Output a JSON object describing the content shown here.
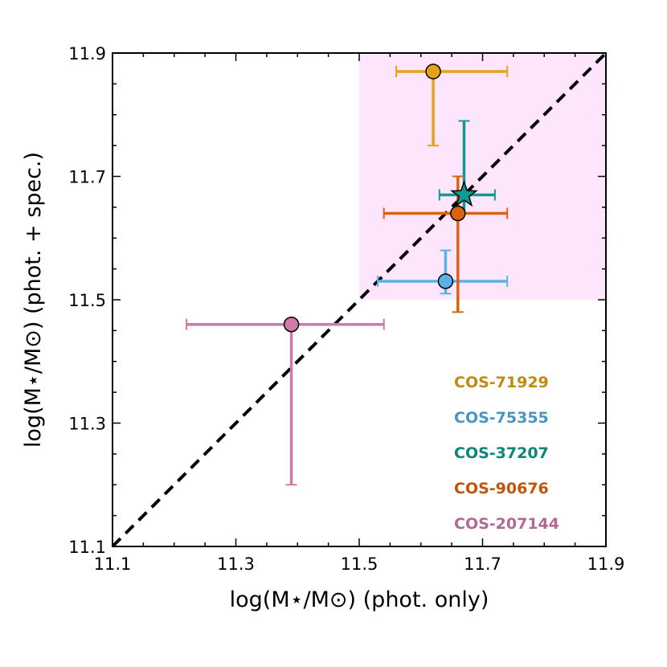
{
  "chart_data": {
    "type": "scatter",
    "xlabel": "log(M⋆/M⊙) (phot. only)",
    "ylabel": "log(M⋆/M⊙) (phot. + spec.)",
    "xlim": [
      11.1,
      11.9
    ],
    "ylim": [
      11.1,
      11.9
    ],
    "xticks": [
      "11.1",
      "11.3",
      "11.5",
      "11.7",
      "11.9"
    ],
    "yticks": [
      "11.1",
      "11.3",
      "11.5",
      "11.7",
      "11.9"
    ],
    "xtick_values": [
      11.1,
      11.3,
      11.5,
      11.7,
      11.9
    ],
    "ytick_values": [
      11.1,
      11.3,
      11.5,
      11.7,
      11.9
    ],
    "minor_step": 0.05,
    "shaded_region": {
      "x": [
        11.5,
        11.9
      ],
      "y": [
        11.5,
        11.9
      ],
      "color": "#fde6fb"
    },
    "reference_line": {
      "style": "dashed",
      "from": [
        11.1,
        11.1
      ],
      "to": [
        11.9,
        11.9
      ],
      "color": "#000000"
    },
    "legend_position": "lower-right",
    "series": [
      {
        "name": "COS-71929",
        "color": "#e8a21a",
        "label_color": "#c18a12",
        "marker": "circle",
        "x": 11.62,
        "y": 11.87,
        "x_err": [
          11.56,
          11.74
        ],
        "y_err": [
          11.75,
          11.87
        ]
      },
      {
        "name": "COS-75355",
        "color": "#5ab1e6",
        "label_color": "#4a94c4",
        "marker": "circle",
        "x": 11.64,
        "y": 11.53,
        "x_err": [
          11.53,
          11.74
        ],
        "y_err": [
          11.51,
          11.58
        ]
      },
      {
        "name": "COS-37207",
        "color": "#119a94",
        "label_color": "#0e857c",
        "marker": "star",
        "x": 11.67,
        "y": 11.67,
        "x_err": [
          11.63,
          11.72
        ],
        "y_err": [
          11.64,
          11.79
        ]
      },
      {
        "name": "COS-90676",
        "color": "#d9630f",
        "label_color": "#c0560b",
        "marker": "circle",
        "x": 11.66,
        "y": 11.64,
        "x_err": [
          11.54,
          11.74
        ],
        "y_err": [
          11.48,
          11.7
        ]
      },
      {
        "name": "COS-207144",
        "color": "#cf7aa9",
        "label_color": "#b26a94",
        "marker": "circle",
        "x": 11.39,
        "y": 11.46,
        "x_err": [
          11.22,
          11.54
        ],
        "y_err": [
          11.2,
          11.46
        ]
      }
    ]
  }
}
